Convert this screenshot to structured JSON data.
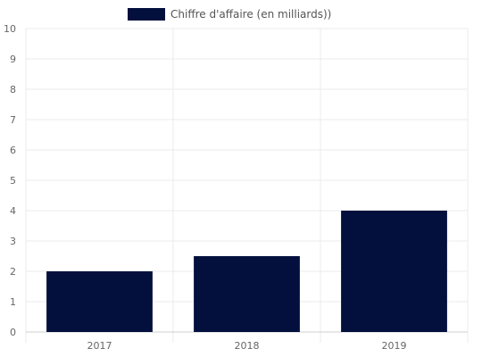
{
  "colors": {
    "bar": "#03103d",
    "grid": "#ebebeb",
    "axis": "#cfcfcf",
    "text": "#666666"
  },
  "chart_data": {
    "type": "bar",
    "categories": [
      "2017",
      "2018",
      "2019"
    ],
    "series": [
      {
        "name": "Chiffre d'affaire (en milliards))",
        "values": [
          2,
          2.5,
          4
        ],
        "color": "#03103d"
      }
    ],
    "ylim": [
      0,
      10
    ],
    "yticks": [
      0,
      1,
      2,
      3,
      4,
      5,
      6,
      7,
      8,
      9,
      10
    ],
    "grid": true,
    "legend": "top-center",
    "title": "",
    "xlabel": "",
    "ylabel": ""
  }
}
